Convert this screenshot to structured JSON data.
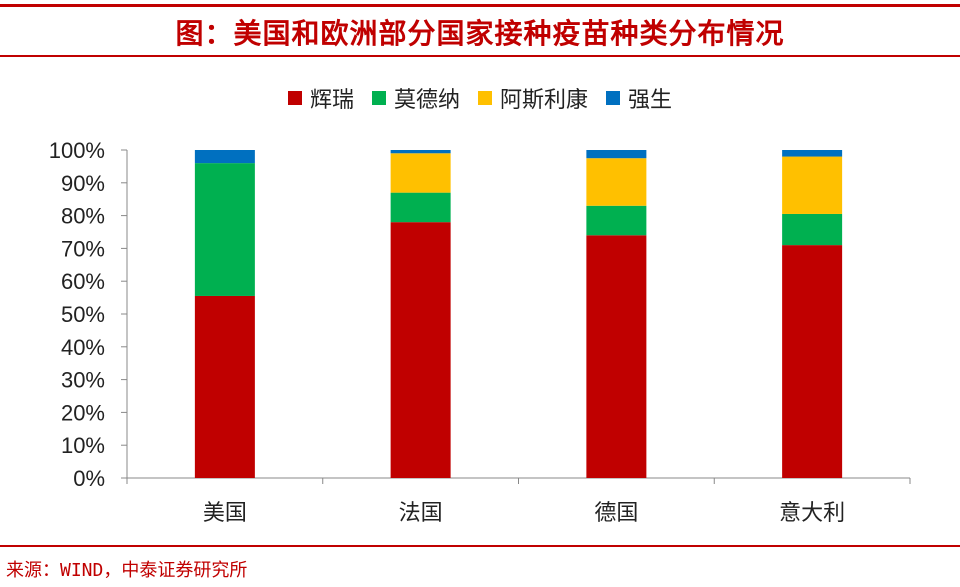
{
  "header": {
    "title": "图：美国和欧洲部分国家接种疫苗种类分布情况"
  },
  "footer": {
    "source": "来源：WIND，中泰证券研究所"
  },
  "chart_data": {
    "type": "bar",
    "stacked": true,
    "categories": [
      "美国",
      "法国",
      "德国",
      "意大利"
    ],
    "series": [
      {
        "name": "辉瑞",
        "color": "#c00000",
        "values": [
          55.5,
          78.0,
          74.0,
          71.0
        ]
      },
      {
        "name": "莫德纳",
        "color": "#00b050",
        "values": [
          40.5,
          9.0,
          9.0,
          9.5
        ]
      },
      {
        "name": "阿斯利康",
        "color": "#ffc000",
        "values": [
          0,
          12.0,
          14.5,
          17.5
        ]
      },
      {
        "name": "强生",
        "color": "#0070c0",
        "values": [
          4.0,
          1.0,
          2.5,
          2.0
        ]
      }
    ],
    "ylim": [
      0,
      100
    ],
    "yticks": [
      "0%",
      "10%",
      "20%",
      "30%",
      "40%",
      "50%",
      "60%",
      "70%",
      "80%",
      "90%",
      "100%"
    ],
    "grid": false,
    "legend_position": "top"
  }
}
